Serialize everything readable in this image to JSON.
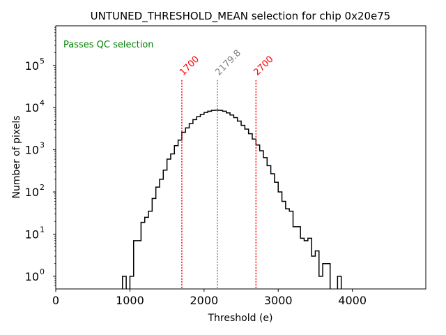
{
  "chart_data": {
    "type": "histogram",
    "title": "UNTUNED_THRESHOLD_MEAN selection for chip 0x20e75",
    "xlabel": "Threshold (e)",
    "ylabel": "Number of pixels",
    "xlim": [
      0,
      4990
    ],
    "ylim_log10": [
      -0.3,
      5.94
    ],
    "yscale": "log",
    "grid": false,
    "x_ticks": [
      0,
      1000,
      2000,
      3000,
      4000
    ],
    "x_tick_labels": [
      "0",
      "1000",
      "2000",
      "3000",
      "4000"
    ],
    "y_ticks_exp": [
      0,
      1,
      2,
      3,
      4,
      5
    ],
    "bin_width": 50,
    "bin_start": 900,
    "counts": [
      1,
      0,
      1,
      7,
      7,
      19,
      25,
      35,
      70,
      130,
      200,
      330,
      600,
      800,
      1250,
      1700,
      2600,
      3300,
      4200,
      5200,
      6100,
      6900,
      7700,
      8200,
      8600,
      8700,
      8600,
      8200,
      7500,
      6700,
      5800,
      4800,
      3800,
      3100,
      2400,
      1800,
      1300,
      950,
      650,
      420,
      270,
      170,
      100,
      60,
      40,
      35,
      15,
      15,
      8,
      7,
      8,
      3,
      4,
      1,
      2,
      2,
      0,
      0,
      1
    ],
    "histogram_color": "#000000",
    "annotations": [
      {
        "name": "lower-cut",
        "x": 1700,
        "label": "1700",
        "color": "#ff0000"
      },
      {
        "name": "mean",
        "x": 2179.8,
        "label": "2179.8",
        "color": "#808080"
      },
      {
        "name": "upper-cut",
        "x": 2700,
        "label": "2700",
        "color": "#ff0000"
      }
    ],
    "status_text": "Passes QC selection",
    "status_color": "#008000"
  }
}
